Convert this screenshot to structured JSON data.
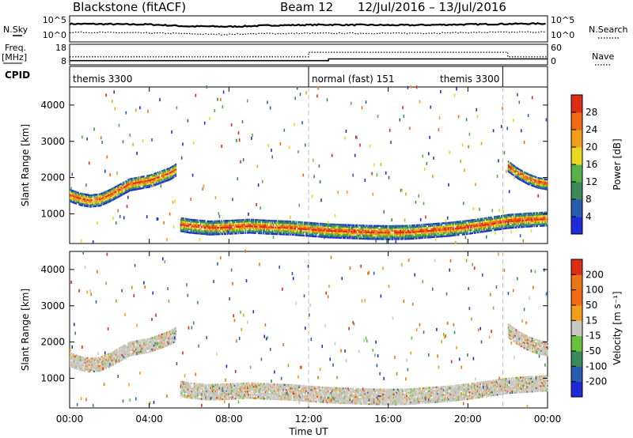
{
  "header": {
    "station": "Blackstone (fitACF)",
    "beam": "Beam 12",
    "date_range": "12/Jul/2016 – 13/Jul/2016"
  },
  "left_labels": {
    "nsky": "N.Sky",
    "freq": "Freq.",
    "freq_unit": "[MHz]",
    "cpid": "CPID"
  },
  "right_labels": {
    "nsearch": "N.Search",
    "nave": "Nave"
  },
  "chart_data": [
    {
      "type": "line",
      "panel": "noise",
      "series": [
        {
          "name": "N.Sky",
          "values": [
            3.0,
            3.0,
            2.95,
            2.9,
            2.9,
            2.7,
            2.5,
            2.5,
            2.45,
            2.55,
            2.7,
            2.75,
            2.8,
            2.85,
            2.8,
            2.8,
            2.75,
            2.75,
            2.8,
            2.85,
            2.9,
            2.95,
            3.0,
            3.05
          ]
        },
        {
          "name": "N.Search",
          "values": [
            1.3,
            1.3,
            1.25,
            1.2,
            1.15,
            1.1,
            1.0,
            0.9,
            0.9,
            1.0,
            1.05,
            1.05,
            1.1,
            1.1,
            1.1,
            1.1,
            1.1,
            1.1,
            1.15,
            1.2,
            1.25,
            1.3,
            1.3,
            1.35
          ]
        }
      ],
      "x": [
        0,
        1,
        2,
        3,
        4,
        5,
        6,
        7,
        8,
        9,
        10,
        11,
        12,
        13,
        14,
        15,
        16,
        17,
        18,
        19,
        20,
        21,
        22,
        23
      ],
      "left_ticks": [
        "10^5",
        "10^0"
      ],
      "right_ticks": [
        "10^5",
        "10^0"
      ]
    },
    {
      "type": "line",
      "panel": "freq-nave",
      "series": [
        {
          "name": "Freq.",
          "values": [
            9.5,
            9.5,
            9.5,
            9.5,
            9.5,
            9.5,
            9.5,
            9.5,
            9.5,
            9.5,
            9.5,
            9.5,
            9.5,
            10.5,
            10.5,
            10.5,
            10.5,
            10.5,
            10.5,
            10.5,
            10.5,
            10.5,
            10.5,
            10.5
          ]
        },
        {
          "name": "Nave",
          "values": [
            22,
            22,
            22,
            22,
            22,
            22,
            22,
            22,
            22,
            22,
            22,
            22,
            38,
            38,
            38,
            38,
            38,
            38,
            38,
            38,
            38,
            38,
            22,
            22
          ]
        }
      ],
      "left_ticks": [
        "18",
        "8"
      ],
      "right_ticks": [
        "60",
        "0"
      ]
    },
    {
      "type": "table",
      "panel": "cpid",
      "segments": [
        {
          "label": "themis 3300",
          "start": 0.0,
          "end": 12.0
        },
        {
          "label": "normal (fast) 151",
          "start": 12.0,
          "end": 21.75
        },
        {
          "label": "themis 3300",
          "start": 21.75,
          "end": 24.0
        }
      ],
      "boundaries": [
        12.0,
        21.75
      ]
    },
    {
      "type": "heatmap",
      "panel": "power",
      "ylabel": "Slant Range [km]",
      "yticks": [
        1000,
        2000,
        3000,
        4000
      ],
      "ylim": [
        180,
        4500
      ],
      "xlim": [
        0,
        24
      ],
      "colorbar": {
        "label": "Power [dB]",
        "ticks": [
          "4",
          "8",
          "12",
          "16",
          "20",
          "24",
          "28"
        ],
        "colors": [
          "#1f2bd6",
          "#2a5db0",
          "#3b8a5a",
          "#55b148",
          "#e8d820",
          "#f29e1a",
          "#f26a14",
          "#e02c14"
        ]
      },
      "bands": [
        {
          "x": [
            0.0,
            0.5,
            1.0,
            1.5,
            2.0,
            2.5,
            3.0,
            3.5,
            4.0,
            4.5,
            5.0,
            5.3
          ],
          "y": [
            1500,
            1400,
            1350,
            1380,
            1500,
            1650,
            1800,
            1850,
            1900,
            2000,
            2100,
            2200
          ],
          "width": 350,
          "power": 20
        },
        {
          "x": [
            5.5,
            6.0,
            7.0,
            8.0,
            9.0,
            10.0,
            11.0,
            12.0,
            13.0,
            14.0,
            15.0,
            16.0,
            17.0,
            18.0,
            19.0,
            20.0,
            21.0,
            22.0,
            23.0,
            24.0
          ],
          "y": [
            700,
            650,
            600,
            620,
            650,
            620,
            600,
            560,
            520,
            500,
            480,
            470,
            480,
            520,
            560,
            620,
            700,
            780,
            820,
            850
          ],
          "width": 380,
          "power": 24
        },
        {
          "x": [
            22.0,
            22.5,
            23.0,
            23.5,
            24.0
          ],
          "y": [
            2300,
            2100,
            1950,
            1850,
            1800
          ],
          "width": 300,
          "power": 16
        }
      ]
    },
    {
      "type": "heatmap",
      "panel": "velocity",
      "xlabel": "Time UT",
      "ylabel": "Slant Range [km]",
      "yticks": [
        1000,
        2000,
        3000,
        4000
      ],
      "ylim": [
        180,
        4500
      ],
      "xlim": [
        0,
        24
      ],
      "xticks": [
        "00:00",
        "04:00",
        "08:00",
        "12:00",
        "16:00",
        "20:00",
        "00:00"
      ],
      "colorbar": {
        "label": "Velocity [m s⁻¹]",
        "ticks": [
          "200",
          "100",
          "50",
          "15",
          "-15",
          "-50",
          "-100",
          "-200"
        ],
        "colors": [
          "#1f2bd6",
          "#2a5db0",
          "#3b8a5a",
          "#66c23a",
          "#c8c8c0",
          "#f29e1a",
          "#f26a14",
          "#e87414",
          "#e02c14"
        ]
      },
      "bands": [
        {
          "x": [
            0.0,
            0.5,
            1.0,
            1.5,
            2.0,
            2.5,
            3.0,
            3.5,
            4.0,
            4.5,
            5.0,
            5.3
          ],
          "y": [
            1500,
            1400,
            1350,
            1380,
            1500,
            1650,
            1800,
            1850,
            1900,
            2000,
            2100,
            2200
          ],
          "width": 380,
          "velocity": 0
        },
        {
          "x": [
            5.5,
            6.0,
            7.0,
            8.0,
            9.0,
            10.0,
            11.0,
            12.0,
            13.0,
            14.0,
            15.0,
            16.0,
            17.0,
            18.0,
            19.0,
            20.0,
            21.0,
            22.0,
            23.0,
            24.0
          ],
          "y": [
            700,
            650,
            600,
            620,
            650,
            620,
            600,
            560,
            520,
            500,
            480,
            470,
            480,
            520,
            560,
            620,
            700,
            780,
            820,
            850
          ],
          "width": 420,
          "velocity": 0
        },
        {
          "x": [
            22.0,
            22.5,
            23.0,
            23.5,
            24.0
          ],
          "y": [
            2300,
            2100,
            1950,
            1850,
            1800
          ],
          "width": 380,
          "velocity": 0
        }
      ]
    }
  ]
}
